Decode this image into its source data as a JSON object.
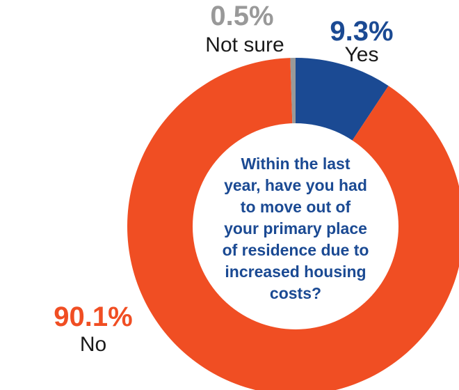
{
  "chart_data": {
    "type": "pie",
    "donut": true,
    "question": [
      "Within the last",
      "year, have you had",
      "to move out of",
      "your primary place",
      "of residence due to",
      "increased housing",
      "costs?"
    ],
    "slices": [
      {
        "label": "Yes",
        "value": 9.3,
        "display": "9.3%",
        "color": "#1b4a93"
      },
      {
        "label": "No",
        "value": 90.1,
        "display": "90.1%",
        "color": "#f04e23"
      },
      {
        "label": "Not sure",
        "value": 0.5,
        "display": "0.5%",
        "color": "#999999"
      }
    ],
    "label_color_question": "#1b4a93"
  }
}
